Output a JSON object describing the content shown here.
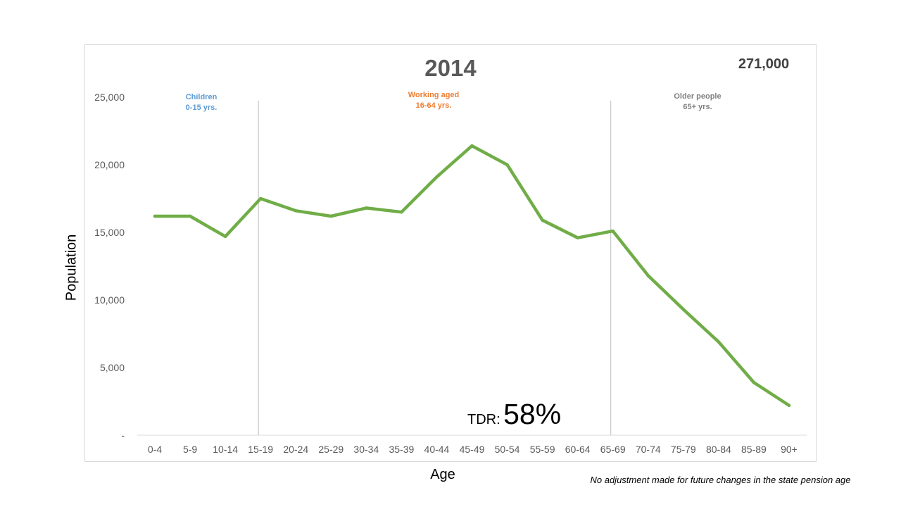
{
  "chart_data": {
    "type": "line",
    "title": "2014",
    "xlabel": "Age",
    "ylabel": "Population",
    "categories": [
      "0-4",
      "5-9",
      "10-14",
      "15-19",
      "20-24",
      "25-29",
      "30-34",
      "35-39",
      "40-44",
      "45-49",
      "50-54",
      "55-59",
      "60-64",
      "65-69",
      "70-74",
      "75-79",
      "80-84",
      "85-89",
      "90+"
    ],
    "series": [
      {
        "values": [
          16200,
          16200,
          14700,
          17500,
          16600,
          16200,
          16800,
          16500,
          19100,
          21400,
          20000,
          15900,
          14600,
          15100,
          11800,
          9300,
          6900,
          3900,
          2200
        ],
        "color": "#70ad47"
      }
    ],
    "ylim": [
      0,
      25000
    ],
    "yticks": [
      0,
      5000,
      10000,
      15000,
      20000,
      25000
    ],
    "ytick_labels": [
      "-",
      "5,000",
      "10,000",
      "15,000",
      "20,000",
      "25,000"
    ],
    "grid": false,
    "dividers": [
      "15-19",
      "65-69"
    ]
  },
  "total": "271,000",
  "regions": {
    "children": {
      "label": "Children",
      "range": "0-15 yrs.",
      "color": "#5b9bd5"
    },
    "working": {
      "label": "Working aged",
      "range": "16-64 yrs.",
      "color": "#ed7d31"
    },
    "older": {
      "label": "Older people",
      "range": "65+ yrs.",
      "color": "#7f7f7f"
    }
  },
  "tdr": {
    "label": "TDR:",
    "value": "58%"
  },
  "footnote": "No adjustment made for future changes in the state pension age"
}
